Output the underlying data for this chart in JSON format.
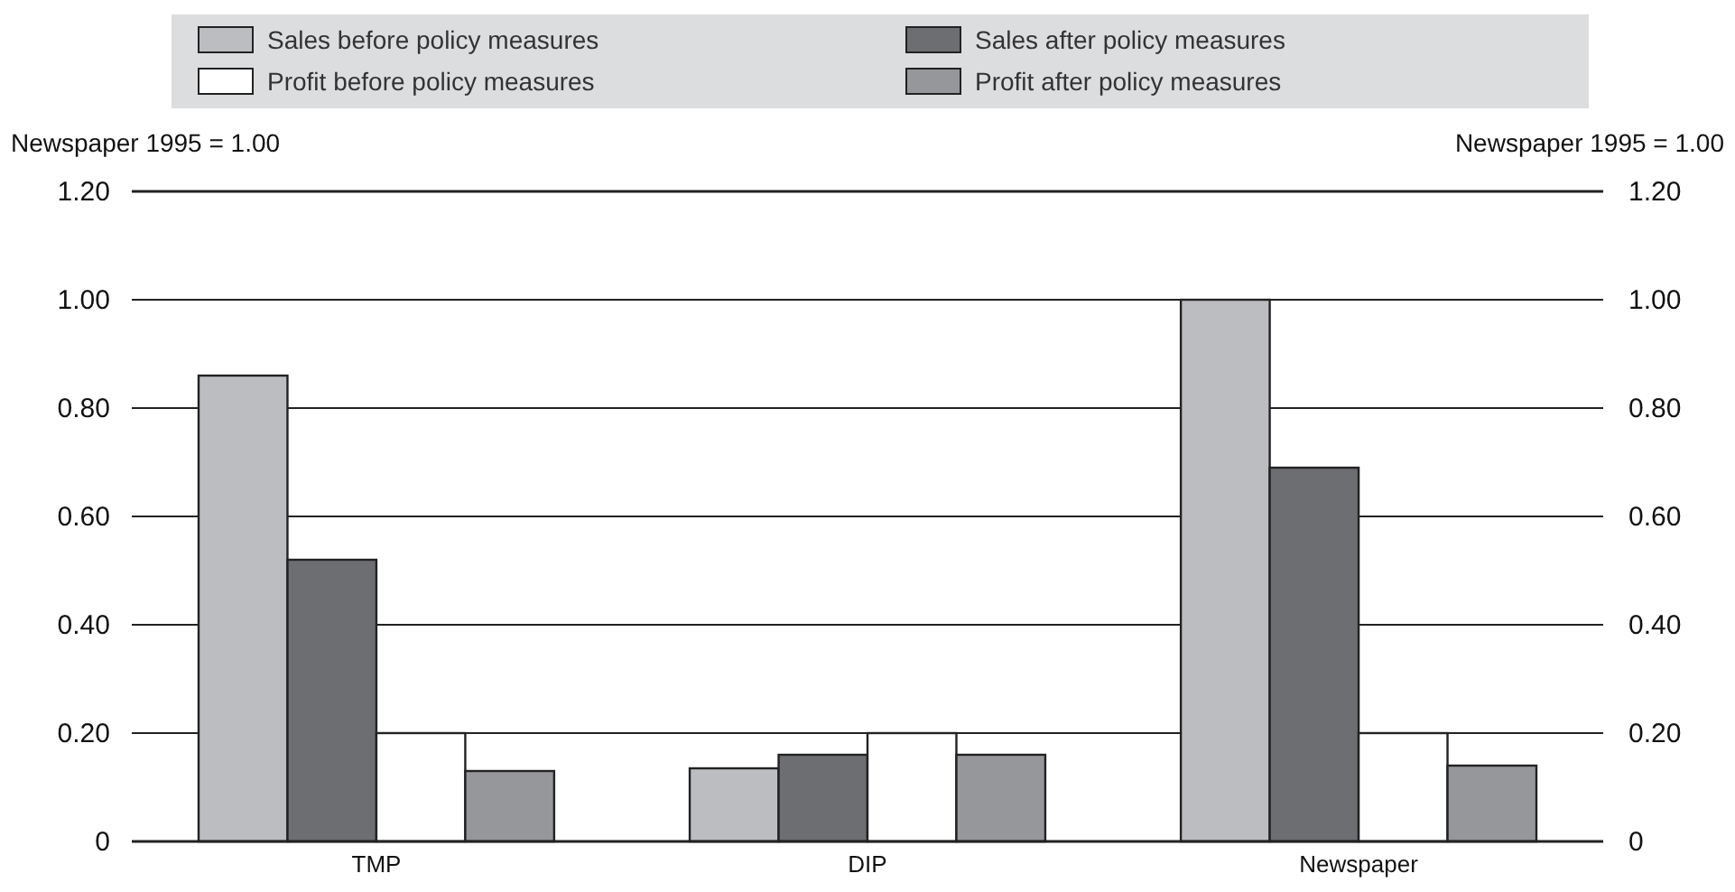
{
  "chart_data": {
    "type": "bar",
    "ylabel": "Newspaper 1995 = 1.00",
    "y2label": "Newspaper 1995 = 1.00",
    "categories": [
      "TMP",
      "DIP",
      "Newspaper"
    ],
    "series": [
      {
        "name": "Sales before policy measures",
        "color": "#bcbdc1",
        "values": [
          0.86,
          0.135,
          1.0
        ]
      },
      {
        "name": "Sales after policy measures",
        "color": "#6d6e72",
        "values": [
          0.52,
          0.16,
          0.69
        ]
      },
      {
        "name": "Profit before policy measures",
        "color": "#ffffff",
        "values": [
          0.2,
          0.2,
          0.2
        ]
      },
      {
        "name": "Profit after policy measures",
        "color": "#96979b",
        "values": [
          0.13,
          0.16,
          0.14
        ]
      }
    ],
    "ylim": [
      0,
      1.2
    ],
    "yticks": [
      0,
      {
        "value": 0.2,
        "label": "0.20"
      },
      {
        "value": 0.4,
        "label": "0.40"
      },
      {
        "value": 0.6,
        "label": "0.60"
      },
      {
        "value": 0.8,
        "label": "0.80"
      },
      {
        "value": 1.0,
        "label": "1.00"
      },
      {
        "value": 1.2,
        "label": "1.20"
      }
    ],
    "y2lim": [
      0,
      1.2
    ],
    "y2ticks": [
      0,
      {
        "value": 0.2,
        "label": "0.20"
      },
      {
        "value": 0.4,
        "label": "0.40"
      },
      {
        "value": 0.6,
        "label": "0.60"
      },
      {
        "value": 0.8,
        "label": "0.80"
      },
      {
        "value": 1.0,
        "label": "1.00"
      },
      {
        "value": 1.2,
        "label": "1.20"
      }
    ],
    "grid": "y",
    "legend": "top"
  }
}
